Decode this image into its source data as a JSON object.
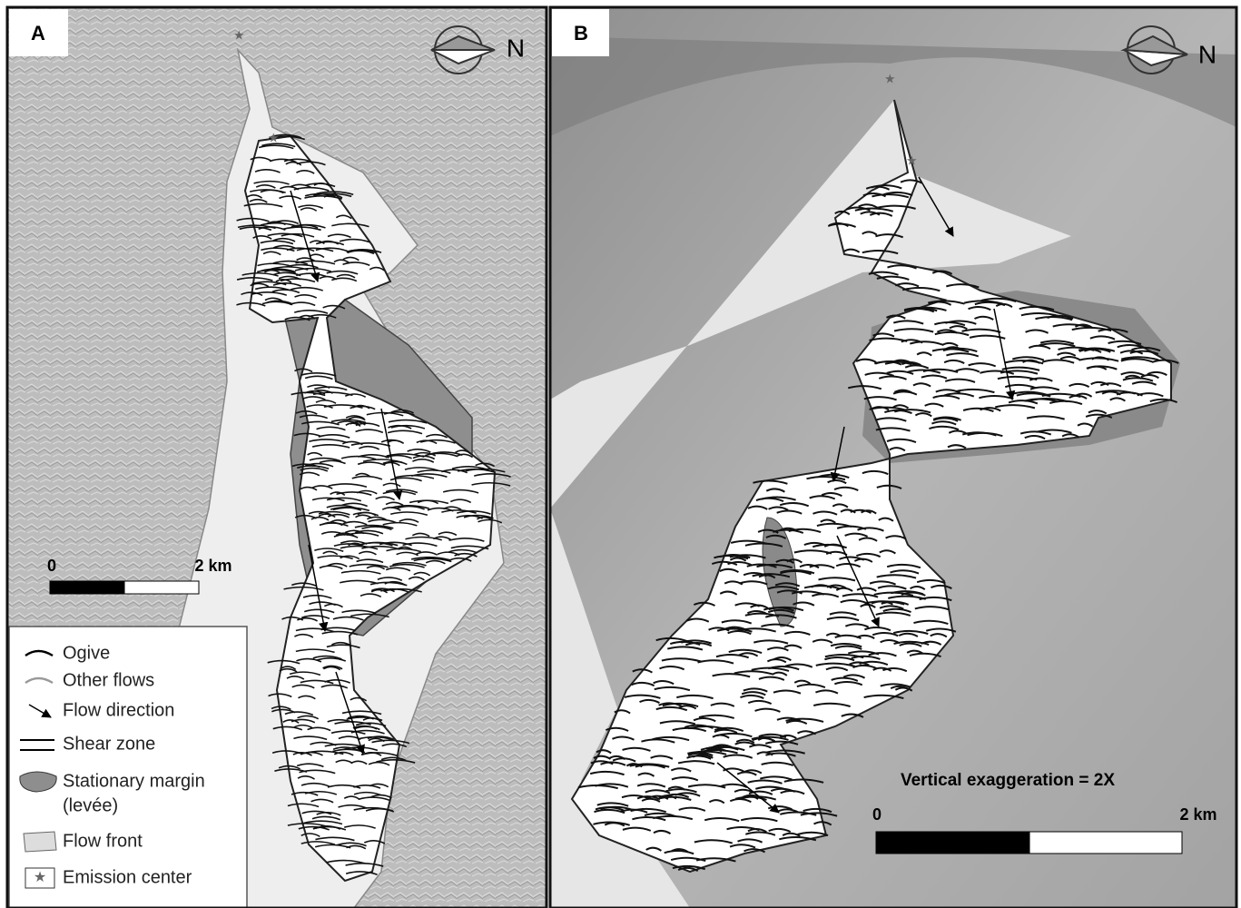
{
  "panels": [
    {
      "label": "A",
      "north": "N",
      "scale": {
        "start": "0",
        "end": "2 km"
      }
    },
    {
      "label": "B",
      "north": "N",
      "scale": {
        "start": "0",
        "end": "2 km"
      },
      "note": "Vertical exaggeration = 2X"
    }
  ],
  "legend": [
    "Ogive",
    "Other flows",
    "Flow direction",
    "Shear zone",
    "Stationary margin",
    "(levée)",
    "Flow front",
    "Emission center"
  ]
}
